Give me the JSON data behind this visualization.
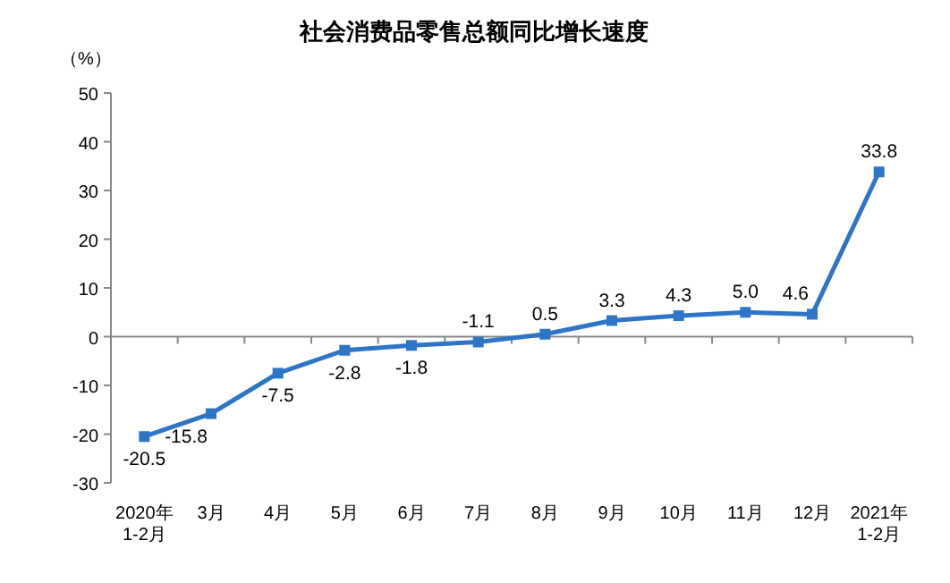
{
  "chart_data": {
    "type": "line",
    "title": "社会消费品零售总额同比增长速度",
    "ylabel": "（%）",
    "categories": [
      "2020年\n1-2月",
      "3月",
      "4月",
      "5月",
      "6月",
      "7月",
      "8月",
      "9月",
      "10月",
      "11月",
      "12月",
      "2021年\n1-2月"
    ],
    "series": [
      {
        "color": "#2e75c6",
        "values": [
          -20.5,
          -15.8,
          -7.5,
          -2.8,
          -1.8,
          -1.1,
          0.5,
          3.3,
          4.3,
          5.0,
          4.6,
          33.8
        ],
        "value_labels": [
          "-20.5",
          "-15.8",
          "-7.5",
          "-2.8",
          "-1.8",
          "-1.1",
          "0.5",
          "3.3",
          "4.3",
          "5.0",
          "4.6",
          "33.8"
        ]
      }
    ],
    "ylim": [
      -30,
      50
    ],
    "yticks": [
      -30,
      -20,
      -10,
      0,
      10,
      20,
      30,
      40,
      50
    ],
    "marker": "square"
  }
}
